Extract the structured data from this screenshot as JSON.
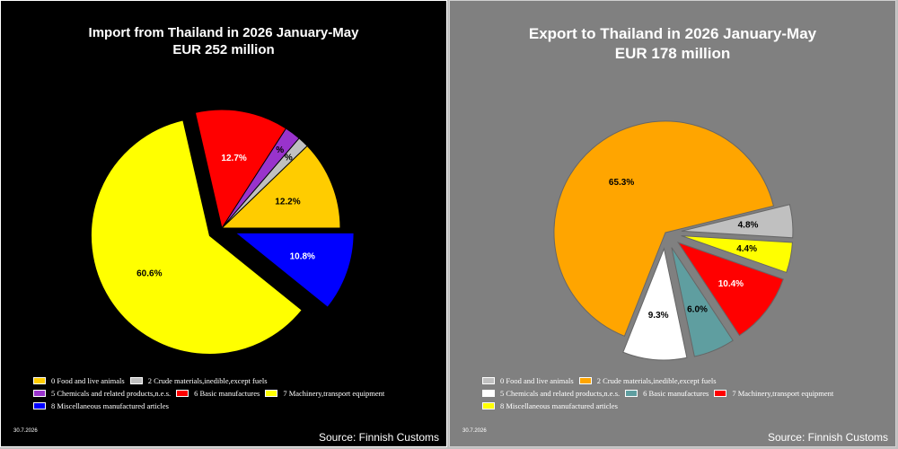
{
  "charts": [
    {
      "id": "import",
      "title": "Import from Thailand in 2026 January-May",
      "subtitle": "EUR   252 million",
      "date": "30.7.2026",
      "source": "Source: Finnish Customs"
    },
    {
      "id": "export",
      "title": "Export to Thailand in 2026 January-May",
      "subtitle": "EUR   178 million",
      "date": "30.7.2026",
      "source": "Source: Finnish Customs"
    }
  ],
  "chart_data": [
    {
      "type": "pie",
      "title": "Import from Thailand in 2026 January-May",
      "subtitle": "EUR   252 million",
      "slices": [
        {
          "name": "0 Food and live animals",
          "value": 12.2,
          "label": "12.2%",
          "color": "#ffcc00",
          "exploded": false
        },
        {
          "name": "2 Crude materials,inedible,except fuels",
          "value": 1.5,
          "label": "%",
          "color": "#c0c0c0",
          "exploded": false
        },
        {
          "name": "5 Chemicals and related products,n.e.s.",
          "value": 2.2,
          "label": "%",
          "color": "#9933cc",
          "exploded": false
        },
        {
          "name": "6 Basic manufactures",
          "value": 12.7,
          "label": "12.7%",
          "color": "#ff0000",
          "exploded": false
        },
        {
          "name": "7 Machinery,transport equipment",
          "value": 60.6,
          "label": "60.6%",
          "color": "#ffff00",
          "exploded": true
        },
        {
          "name": "8 Miscellaneous manufactured articles",
          "value": 10.8,
          "label": "10.8%",
          "color": "#0000ff",
          "exploded": true
        }
      ]
    },
    {
      "type": "pie",
      "title": "Export to Thailand in 2026 January-May",
      "subtitle": "EUR   178 million",
      "slices": [
        {
          "name": "0 Food and live animals",
          "value": 4.8,
          "label": "4.8%",
          "color": "#c0c0c0",
          "exploded": true
        },
        {
          "name": "2 Crude materials,inedible,except fuels",
          "value": 65.3,
          "label": "65.3%",
          "color": "#ffa500",
          "exploded": false
        },
        {
          "name": "5 Chemicals and related products,n.e.s.",
          "value": 9.3,
          "label": "9.3%",
          "color": "#ffffff",
          "exploded": true
        },
        {
          "name": "6 Basic manufactures",
          "value": 6.0,
          "label": "6.0%",
          "color": "#5f9ea0",
          "exploded": true
        },
        {
          "name": "7 Machinery,transport equipment",
          "value": 10.4,
          "label": "10.4%",
          "color": "#ff0000",
          "exploded": true
        },
        {
          "name": "8 Miscellaneous manufactured articles",
          "value": 4.4,
          "label": "4.4%",
          "color": "#ffff00",
          "exploded": true
        }
      ]
    }
  ]
}
